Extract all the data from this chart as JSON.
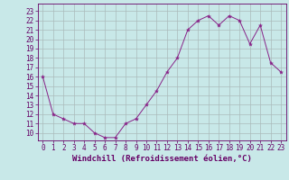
{
  "x": [
    0,
    1,
    2,
    3,
    4,
    5,
    6,
    7,
    8,
    9,
    10,
    11,
    12,
    13,
    14,
    15,
    16,
    17,
    18,
    19,
    20,
    21,
    22,
    23
  ],
  "y": [
    16,
    12,
    11.5,
    11,
    11,
    10,
    9.5,
    9.5,
    11,
    11.5,
    13,
    14.5,
    16.5,
    18,
    21,
    22,
    22.5,
    21.5,
    22.5,
    22,
    19.5,
    21.5,
    17.5,
    16.5
  ],
  "line_color": "#882288",
  "marker": "*",
  "marker_size": 3,
  "bg_color": "#c8e8e8",
  "grid_color": "#aabbbb",
  "xlabel": "Windchill (Refroidissement éolien,°C)",
  "ylim": [
    9.2,
    23.8
  ],
  "xlim": [
    -0.5,
    23.5
  ],
  "yticks": [
    10,
    11,
    12,
    13,
    14,
    15,
    16,
    17,
    18,
    19,
    20,
    21,
    22,
    23
  ],
  "xticks": [
    0,
    1,
    2,
    3,
    4,
    5,
    6,
    7,
    8,
    9,
    10,
    11,
    12,
    13,
    14,
    15,
    16,
    17,
    18,
    19,
    20,
    21,
    22,
    23
  ],
  "tick_fontsize": 5.5,
  "xlabel_fontsize": 6.5,
  "axis_color": "#660066",
  "linewidth": 0.7
}
